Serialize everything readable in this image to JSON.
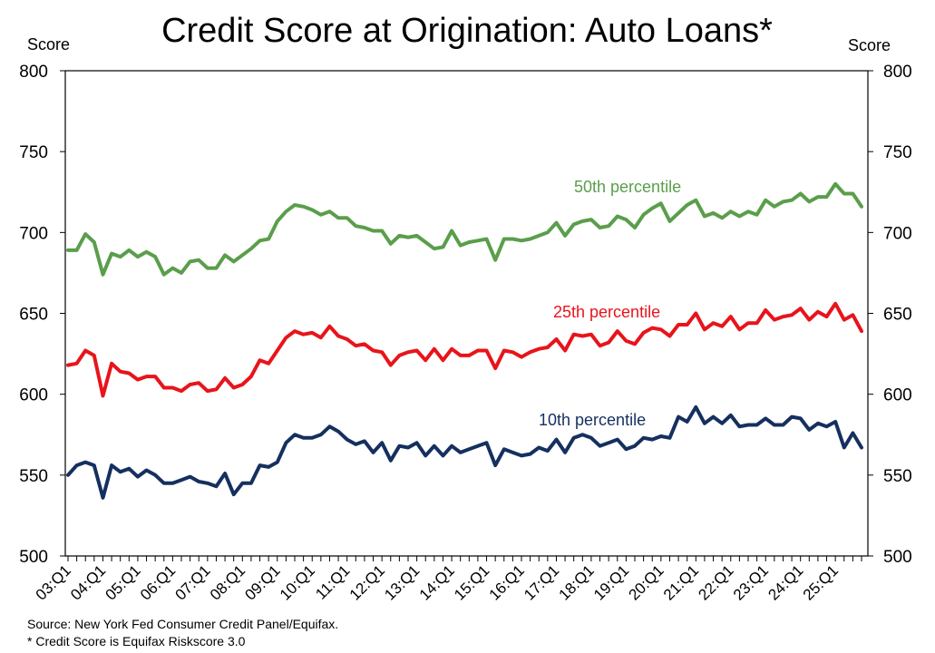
{
  "chart_data": {
    "type": "line",
    "title": "Credit Score at Origination: Auto Loans*",
    "ylabel_left": "Score",
    "ylabel_right": "Score",
    "ylim": [
      500,
      800
    ],
    "yticks": [
      "500",
      "550",
      "600",
      "650",
      "700",
      "750",
      "800"
    ],
    "x_start": "03:Q1",
    "x_tick_labels": [
      "03:Q1",
      "04:Q1",
      "05:Q1",
      "06:Q1",
      "07:Q1",
      "08:Q1",
      "09:Q1",
      "10:Q1",
      "11:Q1",
      "12:Q1",
      "13:Q1",
      "14:Q1",
      "15:Q1",
      "16:Q1",
      "17:Q1",
      "18:Q1",
      "19:Q1",
      "20:Q1",
      "21:Q1",
      "22:Q1",
      "23:Q1",
      "24:Q1",
      "25:Q1"
    ],
    "grid": false,
    "series": [
      {
        "name": "50th percentile",
        "color": "#5a9e4b",
        "values": [
          689,
          689,
          699,
          694,
          674,
          687,
          685,
          689,
          685,
          688,
          685,
          674,
          678,
          675,
          682,
          683,
          678,
          678,
          686,
          682,
          686,
          690,
          695,
          696,
          707,
          713,
          717,
          716,
          714,
          711,
          713,
          709,
          709,
          704,
          703,
          701,
          701,
          693,
          698,
          697,
          698,
          694,
          690,
          691,
          701,
          692,
          694,
          695,
          696,
          683,
          696,
          696,
          695,
          696,
          698,
          700,
          706,
          698,
          705,
          707,
          708,
          703,
          704,
          710,
          708,
          703,
          711,
          715,
          718,
          707,
          712,
          717,
          720,
          710,
          712,
          709,
          713,
          710,
          713,
          711,
          720,
          716,
          719,
          720,
          724,
          719,
          722,
          722,
          730,
          724,
          724,
          716
        ]
      },
      {
        "name": "25th percentile",
        "color": "#e8141b",
        "values": [
          618,
          619,
          627,
          624,
          599,
          619,
          614,
          613,
          609,
          611,
          611,
          604,
          604,
          602,
          606,
          607,
          602,
          603,
          610,
          604,
          606,
          611,
          621,
          619,
          627,
          635,
          639,
          637,
          638,
          635,
          642,
          636,
          634,
          630,
          631,
          627,
          626,
          618,
          624,
          626,
          627,
          621,
          628,
          621,
          628,
          624,
          624,
          627,
          627,
          616,
          627,
          626,
          623,
          626,
          628,
          629,
          634,
          627,
          637,
          636,
          637,
          630,
          632,
          639,
          633,
          631,
          638,
          641,
          640,
          636,
          643,
          643,
          650,
          640,
          644,
          642,
          648,
          640,
          644,
          644,
          652,
          646,
          648,
          649,
          653,
          646,
          651,
          648,
          656,
          646,
          649,
          639
        ]
      },
      {
        "name": "10th percentile",
        "color": "#15305f",
        "values": [
          550,
          556,
          558,
          556,
          536,
          556,
          552,
          554,
          549,
          553,
          550,
          545,
          545,
          547,
          549,
          546,
          545,
          543,
          551,
          538,
          545,
          545,
          556,
          555,
          558,
          570,
          575,
          573,
          573,
          575,
          580,
          577,
          572,
          569,
          571,
          564,
          570,
          559,
          568,
          567,
          570,
          562,
          568,
          562,
          568,
          564,
          566,
          568,
          570,
          556,
          566,
          564,
          562,
          563,
          567,
          565,
          572,
          564,
          573,
          575,
          573,
          568,
          570,
          572,
          566,
          568,
          573,
          572,
          574,
          573,
          586,
          583,
          592,
          582,
          586,
          582,
          587,
          580,
          581,
          581,
          585,
          581,
          581,
          586,
          585,
          578,
          582,
          580,
          583,
          567,
          576,
          567
        ]
      }
    ],
    "annotations": [
      {
        "text": "50th percentile",
        "series": 0
      },
      {
        "text": "25th percentile",
        "series": 1
      },
      {
        "text": "10th percentile",
        "series": 2
      }
    ],
    "notes": [
      "Source: New York Fed Consumer Credit Panel/Equifax.",
      "* Credit Score is Equifax Riskscore 3.0"
    ]
  }
}
